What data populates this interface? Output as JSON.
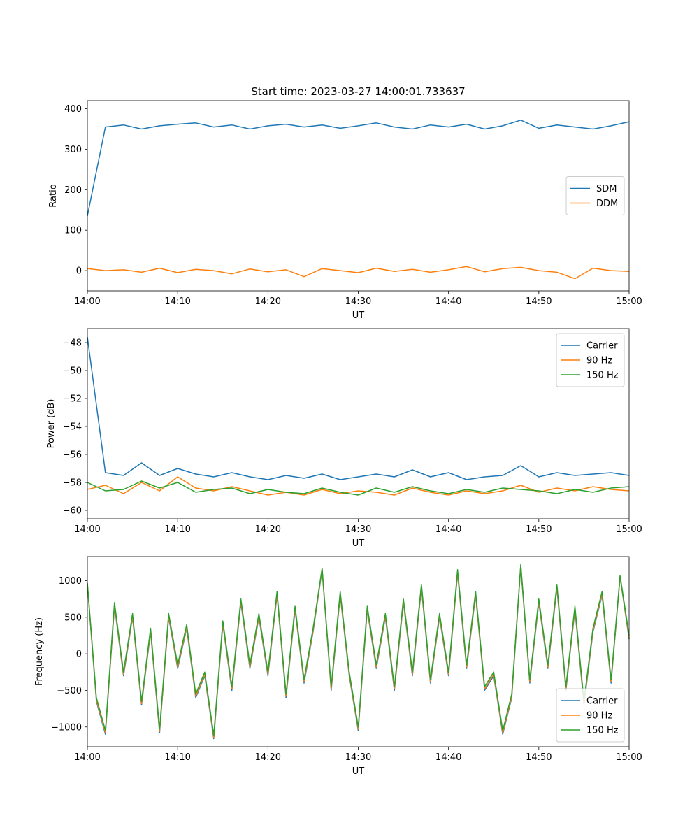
{
  "figure": {
    "title": "Start time: 2023-03-27 14:00:01.733637"
  },
  "colors": {
    "c0": "#1f77b4",
    "c1": "#ff7f0e",
    "c2": "#2ca02c"
  },
  "chart_data": [
    {
      "type": "line",
      "xlabel": "UT",
      "ylabel": "Ratio",
      "xlim": [
        "14:00",
        "15:00"
      ],
      "ylim": [
        -50,
        420
      ],
      "xticks": [
        "14:00",
        "14:10",
        "14:20",
        "14:30",
        "14:40",
        "14:50",
        "15:00"
      ],
      "yticks": [
        0,
        100,
        200,
        300,
        400
      ],
      "ytick_labels": [
        "0",
        "100",
        "200",
        "300",
        "400"
      ],
      "legend": {
        "position": "center-right"
      },
      "x": [
        "14:00",
        "14:02",
        "14:04",
        "14:06",
        "14:08",
        "14:10",
        "14:12",
        "14:14",
        "14:16",
        "14:18",
        "14:20",
        "14:22",
        "14:24",
        "14:26",
        "14:28",
        "14:30",
        "14:32",
        "14:34",
        "14:36",
        "14:38",
        "14:40",
        "14:42",
        "14:44",
        "14:46",
        "14:48",
        "14:50",
        "14:52",
        "14:54",
        "14:56",
        "14:58",
        "15:00"
      ],
      "series": [
        {
          "name": "SDM",
          "color": "#1f77b4",
          "values": [
            135,
            355,
            360,
            350,
            358,
            362,
            365,
            355,
            360,
            350,
            358,
            362,
            355,
            360,
            352,
            358,
            365,
            355,
            350,
            360,
            355,
            362,
            350,
            358,
            372,
            352,
            360,
            355,
            350,
            358,
            368
          ]
        },
        {
          "name": "DDM",
          "color": "#ff7f0e",
          "values": [
            5,
            0,
            2,
            -4,
            6,
            -5,
            3,
            0,
            -8,
            4,
            -3,
            2,
            -15,
            5,
            0,
            -5,
            6,
            -2,
            3,
            -4,
            2,
            10,
            -3,
            5,
            8,
            0,
            -4,
            -20,
            6,
            0,
            -2
          ]
        }
      ]
    },
    {
      "type": "line",
      "xlabel": "UT",
      "ylabel": "Power (dB)",
      "xlim": [
        "14:00",
        "15:00"
      ],
      "ylim": [
        -60.6,
        -47.0
      ],
      "xticks": [
        "14:00",
        "14:10",
        "14:20",
        "14:30",
        "14:40",
        "14:50",
        "15:00"
      ],
      "yticks": [
        -60,
        -58,
        -56,
        -54,
        -52,
        -50,
        -48
      ],
      "ytick_labels": [
        "−60",
        "−58",
        "−56",
        "−54",
        "−52",
        "−50",
        "−48"
      ],
      "legend": {
        "position": "top-right"
      },
      "x": [
        "14:00",
        "14:02",
        "14:04",
        "14:06",
        "14:08",
        "14:10",
        "14:12",
        "14:14",
        "14:16",
        "14:18",
        "14:20",
        "14:22",
        "14:24",
        "14:26",
        "14:28",
        "14:30",
        "14:32",
        "14:34",
        "14:36",
        "14:38",
        "14:40",
        "14:42",
        "14:44",
        "14:46",
        "14:48",
        "14:50",
        "14:52",
        "14:54",
        "14:56",
        "14:58",
        "15:00"
      ],
      "series": [
        {
          "name": "Carrier",
          "color": "#1f77b4",
          "values": [
            -47.6,
            -57.3,
            -57.5,
            -56.6,
            -57.5,
            -57.0,
            -57.4,
            -57.6,
            -57.3,
            -57.6,
            -57.8,
            -57.5,
            -57.7,
            -57.4,
            -57.8,
            -57.6,
            -57.4,
            -57.6,
            -57.1,
            -57.6,
            -57.3,
            -57.8,
            -57.6,
            -57.5,
            -56.8,
            -57.6,
            -57.3,
            -57.5,
            -57.4,
            -57.3,
            -57.5
          ]
        },
        {
          "name": "90 Hz",
          "color": "#ff7f0e",
          "values": [
            -58.5,
            -58.2,
            -58.8,
            -58.0,
            -58.6,
            -57.6,
            -58.4,
            -58.6,
            -58.3,
            -58.6,
            -58.9,
            -58.7,
            -58.9,
            -58.5,
            -58.8,
            -58.6,
            -58.7,
            -58.9,
            -58.4,
            -58.7,
            -58.9,
            -58.6,
            -58.8,
            -58.6,
            -58.2,
            -58.7,
            -58.4,
            -58.6,
            -58.3,
            -58.5,
            -58.6
          ]
        },
        {
          "name": "150 Hz",
          "color": "#2ca02c",
          "values": [
            -58.0,
            -58.6,
            -58.5,
            -57.9,
            -58.4,
            -58.0,
            -58.7,
            -58.5,
            -58.4,
            -58.8,
            -58.5,
            -58.7,
            -58.8,
            -58.4,
            -58.7,
            -58.9,
            -58.4,
            -58.7,
            -58.3,
            -58.6,
            -58.8,
            -58.5,
            -58.7,
            -58.4,
            -58.5,
            -58.6,
            -58.8,
            -58.5,
            -58.7,
            -58.4,
            -58.3
          ]
        }
      ]
    },
    {
      "type": "line",
      "xlabel": "UT",
      "ylabel": "Frequency (Hz)",
      "xlim": [
        "14:00",
        "15:00"
      ],
      "ylim": [
        -1270,
        1330
      ],
      "xticks": [
        "14:00",
        "14:10",
        "14:20",
        "14:30",
        "14:40",
        "14:50",
        "15:00"
      ],
      "yticks": [
        -1000,
        -500,
        0,
        500,
        1000
      ],
      "ytick_labels": [
        "−1000",
        "−500",
        "0",
        "500",
        "1000"
      ],
      "legend": {
        "position": "bottom-right"
      },
      "x": [
        "14:00",
        "14:01",
        "14:02",
        "14:03",
        "14:04",
        "14:05",
        "14:06",
        "14:07",
        "14:08",
        "14:09",
        "14:10",
        "14:11",
        "14:12",
        "14:13",
        "14:14",
        "14:15",
        "14:16",
        "14:17",
        "14:18",
        "14:19",
        "14:20",
        "14:21",
        "14:22",
        "14:23",
        "14:24",
        "14:25",
        "14:26",
        "14:27",
        "14:28",
        "14:29",
        "14:30",
        "14:31",
        "14:32",
        "14:33",
        "14:34",
        "14:35",
        "14:36",
        "14:37",
        "14:38",
        "14:39",
        "14:40",
        "14:41",
        "14:42",
        "14:43",
        "14:44",
        "14:45",
        "14:46",
        "14:47",
        "14:48",
        "14:49",
        "14:50",
        "14:51",
        "14:52",
        "14:53",
        "14:54",
        "14:55",
        "14:56",
        "14:57",
        "14:58",
        "14:59",
        "15:00"
      ],
      "series": [
        {
          "name": "Carrier",
          "color": "#1f77b4",
          "values": [
            950,
            -650,
            -1100,
            650,
            -300,
            500,
            -700,
            300,
            -1080,
            500,
            -200,
            350,
            -600,
            -300,
            -1160,
            400,
            -500,
            700,
            -200,
            500,
            -300,
            800,
            -600,
            600,
            -400,
            300,
            1150,
            -500,
            800,
            -300,
            -1050,
            600,
            -200,
            500,
            -500,
            700,
            -300,
            900,
            -400,
            500,
            -300,
            1100,
            -200,
            800,
            -500,
            -300,
            -1100,
            -600,
            1200,
            -400,
            700,
            -200,
            900,
            -500,
            600,
            -700,
            300,
            800,
            -400,
            1050,
            200
          ]
        },
        {
          "name": "90 Hz",
          "color": "#ff7f0e",
          "values": [
            960,
            -630,
            -1080,
            670,
            -280,
            520,
            -680,
            320,
            -1060,
            520,
            -180,
            370,
            -580,
            -280,
            -1140,
            420,
            -480,
            720,
            -180,
            520,
            -280,
            820,
            -580,
            620,
            -380,
            320,
            1160,
            -480,
            820,
            -280,
            -1030,
            620,
            -180,
            520,
            -480,
            720,
            -280,
            920,
            -380,
            520,
            -280,
            1120,
            -180,
            820,
            -480,
            -280,
            -1080,
            -580,
            1210,
            -380,
            720,
            -180,
            920,
            -480,
            620,
            -680,
            320,
            820,
            -380,
            1060,
            220
          ]
        },
        {
          "name": "150 Hz",
          "color": "#2ca02c",
          "values": [
            970,
            -600,
            -1050,
            700,
            -250,
            550,
            -650,
            350,
            -1030,
            550,
            -150,
            400,
            -550,
            -250,
            -1110,
            450,
            -450,
            750,
            -150,
            550,
            -250,
            850,
            -550,
            650,
            -350,
            350,
            1170,
            -450,
            850,
            -250,
            -1000,
            650,
            -150,
            550,
            -450,
            750,
            -250,
            950,
            -350,
            550,
            -250,
            1150,
            -150,
            850,
            -450,
            -250,
            -1050,
            -550,
            1220,
            -350,
            750,
            -150,
            950,
            -450,
            650,
            -650,
            350,
            850,
            -350,
            1070,
            250
          ]
        }
      ]
    }
  ]
}
